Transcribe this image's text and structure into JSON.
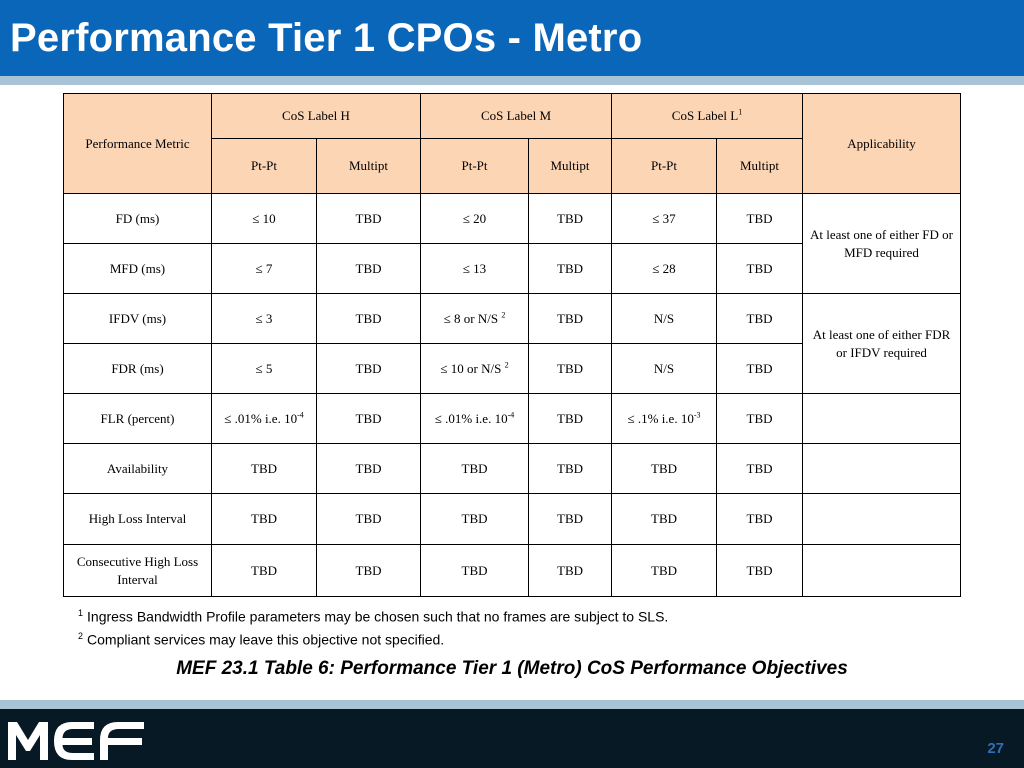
{
  "slide": {
    "title": "Performance Tier 1 CPOs - Metro",
    "page_number": "27",
    "logo_text": "MEF"
  },
  "table": {
    "header": {
      "metric": "Performance Metric",
      "cos_h": "CoS Label H",
      "cos_m": "CoS Label M",
      "cos_l": "CoS Label L",
      "cos_l_sup": "1",
      "applicability": "Applicability",
      "sub": [
        "Pt-Pt",
        "Multipt",
        "Pt-Pt",
        "Multipt",
        "Pt-Pt",
        "Multipt"
      ]
    },
    "rows": [
      {
        "metric": "FD (ms)",
        "h_ptpt": "≤ 10",
        "h_multi": "TBD",
        "m_ptpt": "≤ 20",
        "m_multi": "TBD",
        "l_ptpt": "≤ 37",
        "l_multi": "TBD"
      },
      {
        "metric": "MFD (ms)",
        "h_ptpt": "≤ 7",
        "h_multi": "TBD",
        "m_ptpt": "≤ 13",
        "m_multi": "TBD",
        "l_ptpt": "≤ 28",
        "l_multi": "TBD"
      },
      {
        "metric": "IFDV (ms)",
        "h_ptpt": "≤ 3",
        "h_multi": "TBD",
        "m_ptpt": "≤ 8 or N/S",
        "m_ptpt_sup": "2",
        "m_multi": "TBD",
        "l_ptpt": "N/S",
        "l_multi": "TBD"
      },
      {
        "metric": "FDR (ms)",
        "h_ptpt": "≤ 5",
        "h_multi": "TBD",
        "m_ptpt": "≤ 10 or N/S",
        "m_ptpt_sup": "2",
        "m_multi": "TBD",
        "l_ptpt": "N/S",
        "l_multi": "TBD"
      },
      {
        "metric": "FLR (percent)",
        "h_ptpt": "≤ .01% i.e. 10",
        "h_ptpt_sup": "-4",
        "h_multi": "TBD",
        "m_ptpt": "≤ .01% i.e. 10",
        "m_ptpt_sup": "-4",
        "m_multi": "TBD",
        "l_ptpt": "≤ .1% i.e. 10",
        "l_ptpt_sup": "-3",
        "l_multi": "TBD"
      },
      {
        "metric": "Availability",
        "h_ptpt": "TBD",
        "h_multi": "TBD",
        "m_ptpt": "TBD",
        "m_multi": "TBD",
        "l_ptpt": "TBD",
        "l_multi": "TBD"
      },
      {
        "metric": "High Loss Interval",
        "h_ptpt": "TBD",
        "h_multi": "TBD",
        "m_ptpt": "TBD",
        "m_multi": "TBD",
        "l_ptpt": "TBD",
        "l_multi": "TBD"
      },
      {
        "metric": "Consecutive High Loss Interval",
        "h_ptpt": "TBD",
        "h_multi": "TBD",
        "m_ptpt": "TBD",
        "m_multi": "TBD",
        "l_ptpt": "TBD",
        "l_multi": "TBD"
      }
    ],
    "applicability": {
      "fd_mfd": "At least one of either FD or MFD required",
      "ifdv_fdr": "At least one of either FDR or IFDV required"
    }
  },
  "footnotes": [
    {
      "num": "1",
      "text": "Ingress Bandwidth Profile parameters may be chosen such that no frames are subject to SLS."
    },
    {
      "num": "2",
      "text": "Compliant services may leave this objective not specified."
    }
  ],
  "caption": "MEF 23.1 Table 6: Performance Tier 1 (Metro)  CoS Performance Objectives"
}
